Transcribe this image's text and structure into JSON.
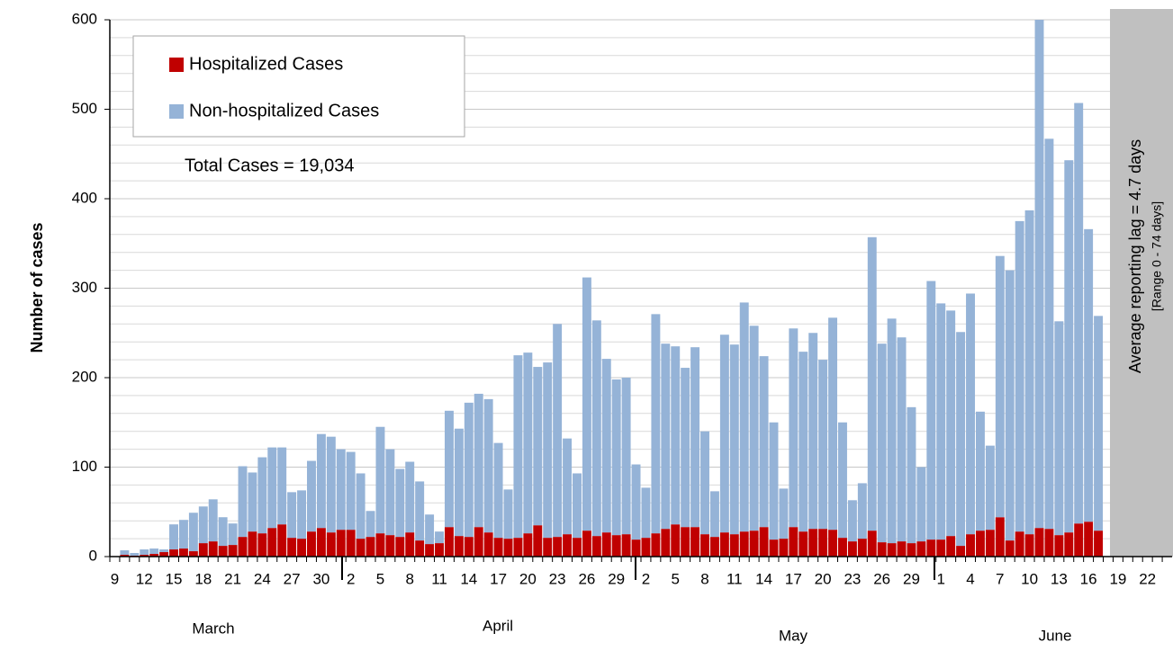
{
  "chart_data": {
    "type": "stacked_bar",
    "y_axis_label": "Number of cases",
    "annotation": "Total Cases = 19,034",
    "side_note": "Average reporting lag = 4.7 days",
    "side_note_range": "[Range 0 - 74 days]",
    "months": [
      "March",
      "April",
      "May",
      "June"
    ],
    "categories": [
      "9",
      null,
      null,
      "12",
      null,
      null,
      "15",
      null,
      null,
      "18",
      null,
      null,
      "21",
      null,
      null,
      "24",
      null,
      null,
      "27",
      null,
      null,
      "30",
      null,
      null,
      "2",
      null,
      null,
      "5",
      null,
      null,
      "8",
      null,
      null,
      "11",
      null,
      null,
      "14",
      null,
      null,
      "17",
      null,
      null,
      "20",
      null,
      null,
      "23",
      null,
      null,
      "26",
      null,
      null,
      "29",
      null,
      null,
      "2",
      null,
      null,
      "5",
      null,
      null,
      "8",
      null,
      null,
      "11",
      null,
      null,
      "14",
      null,
      null,
      "17",
      null,
      null,
      "20",
      null,
      null,
      "23",
      null,
      null,
      "26",
      null,
      null,
      "29",
      null,
      null,
      "1",
      null,
      null,
      "4",
      null,
      null,
      "7",
      null,
      null,
      "10",
      null,
      null,
      "13",
      null,
      null,
      "16",
      null,
      null,
      "19",
      null,
      null,
      "22",
      null,
      null
    ],
    "series": [
      {
        "name": "Hospitalized Cases",
        "color": "#c00000",
        "values": [
          0,
          2,
          1,
          2,
          3,
          5,
          8,
          9,
          6,
          15,
          17,
          12,
          13,
          22,
          28,
          26,
          32,
          36,
          21,
          20,
          28,
          32,
          27,
          30,
          30,
          20,
          22,
          26,
          24,
          22,
          27,
          18,
          14,
          15,
          33,
          23,
          22,
          33,
          27,
          21,
          20,
          21,
          26,
          35,
          21,
          22,
          25,
          21,
          29,
          23,
          27,
          24,
          25,
          19,
          21,
          26,
          31,
          36,
          33,
          33,
          25,
          22,
          27,
          25,
          28,
          29,
          33,
          19,
          20,
          33,
          28,
          31,
          31,
          30,
          21,
          17,
          20,
          29,
          16,
          15,
          17,
          15,
          17,
          19,
          19,
          23,
          12,
          25,
          29,
          30,
          44,
          18,
          28,
          25,
          32,
          31,
          24,
          27,
          37,
          39,
          29,
          null,
          null,
          null,
          null,
          null,
          null,
          null
        ]
      },
      {
        "name": "Non-hospitalized Cases",
        "color": "#95b3d7",
        "values": [
          0,
          5,
          3,
          6,
          6,
          3,
          28,
          32,
          43,
          41,
          47,
          32,
          24,
          79,
          66,
          85,
          90,
          86,
          51,
          54,
          79,
          105,
          107,
          90,
          87,
          73,
          29,
          119,
          96,
          76,
          79,
          66,
          33,
          13,
          130,
          120,
          150,
          149,
          149,
          106,
          55,
          204,
          202,
          177,
          196,
          238,
          107,
          72,
          283,
          241,
          194,
          174,
          175,
          84,
          56,
          245,
          207,
          199,
          178,
          201,
          115,
          51,
          221,
          212,
          256,
          229,
          191,
          131,
          56,
          222,
          201,
          219,
          189,
          237,
          129,
          46,
          62,
          328,
          222,
          251,
          228,
          152,
          83,
          289,
          264,
          252,
          239,
          269,
          133,
          94,
          292,
          302,
          347,
          362,
          568,
          436,
          239,
          416,
          470,
          327,
          240,
          null,
          null,
          null,
          null,
          null,
          null,
          null
        ]
      }
    ],
    "ylim": [
      0,
      600
    ],
    "yticks": [
      0,
      100,
      200,
      300,
      400,
      500,
      600
    ],
    "grid": true,
    "legend": "upper left"
  }
}
